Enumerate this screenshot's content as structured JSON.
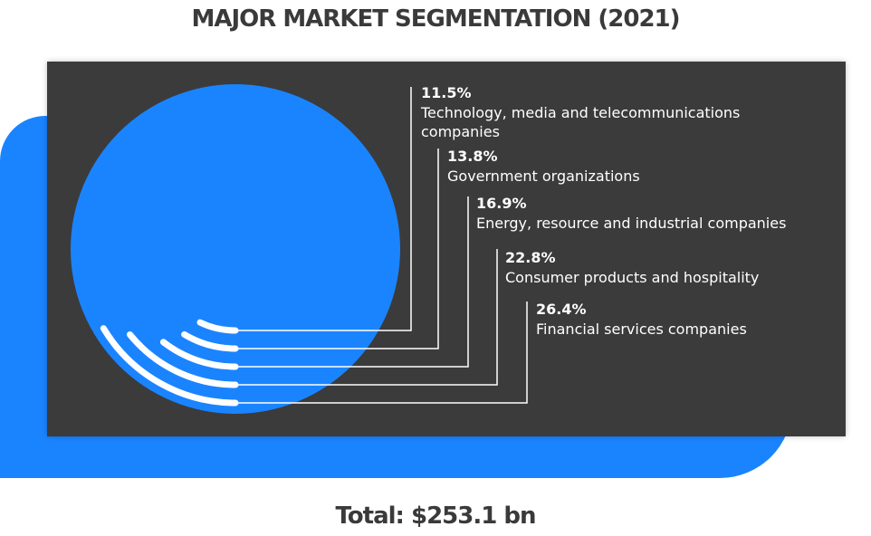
{
  "header": {
    "title": "MAJOR MARKET SEGMENTATION (2021)"
  },
  "footer": {
    "total": "Total: $253.1 bn"
  },
  "colors": {
    "accent": "#1a84ff",
    "panel": "#3b3b3b",
    "text": "#3a3a3a"
  },
  "chart_data": {
    "type": "pie",
    "title": "MAJOR MARKET SEGMENTATION (2021)",
    "total_label": "Total: $253.1 bn",
    "series": [
      {
        "name": "Technology, media and telecommunications companies",
        "value": 11.5,
        "label": "11.5%"
      },
      {
        "name": "Government organizations",
        "value": 13.8,
        "label": "13.8%"
      },
      {
        "name": "Energy, resource and industrial companies",
        "value": 16.9,
        "label": "16.9%"
      },
      {
        "name": "Consumer products and hospitality",
        "value": 22.8,
        "label": "22.8%"
      },
      {
        "name": "Financial services companies",
        "value": 26.4,
        "label": "26.4%"
      }
    ]
  }
}
